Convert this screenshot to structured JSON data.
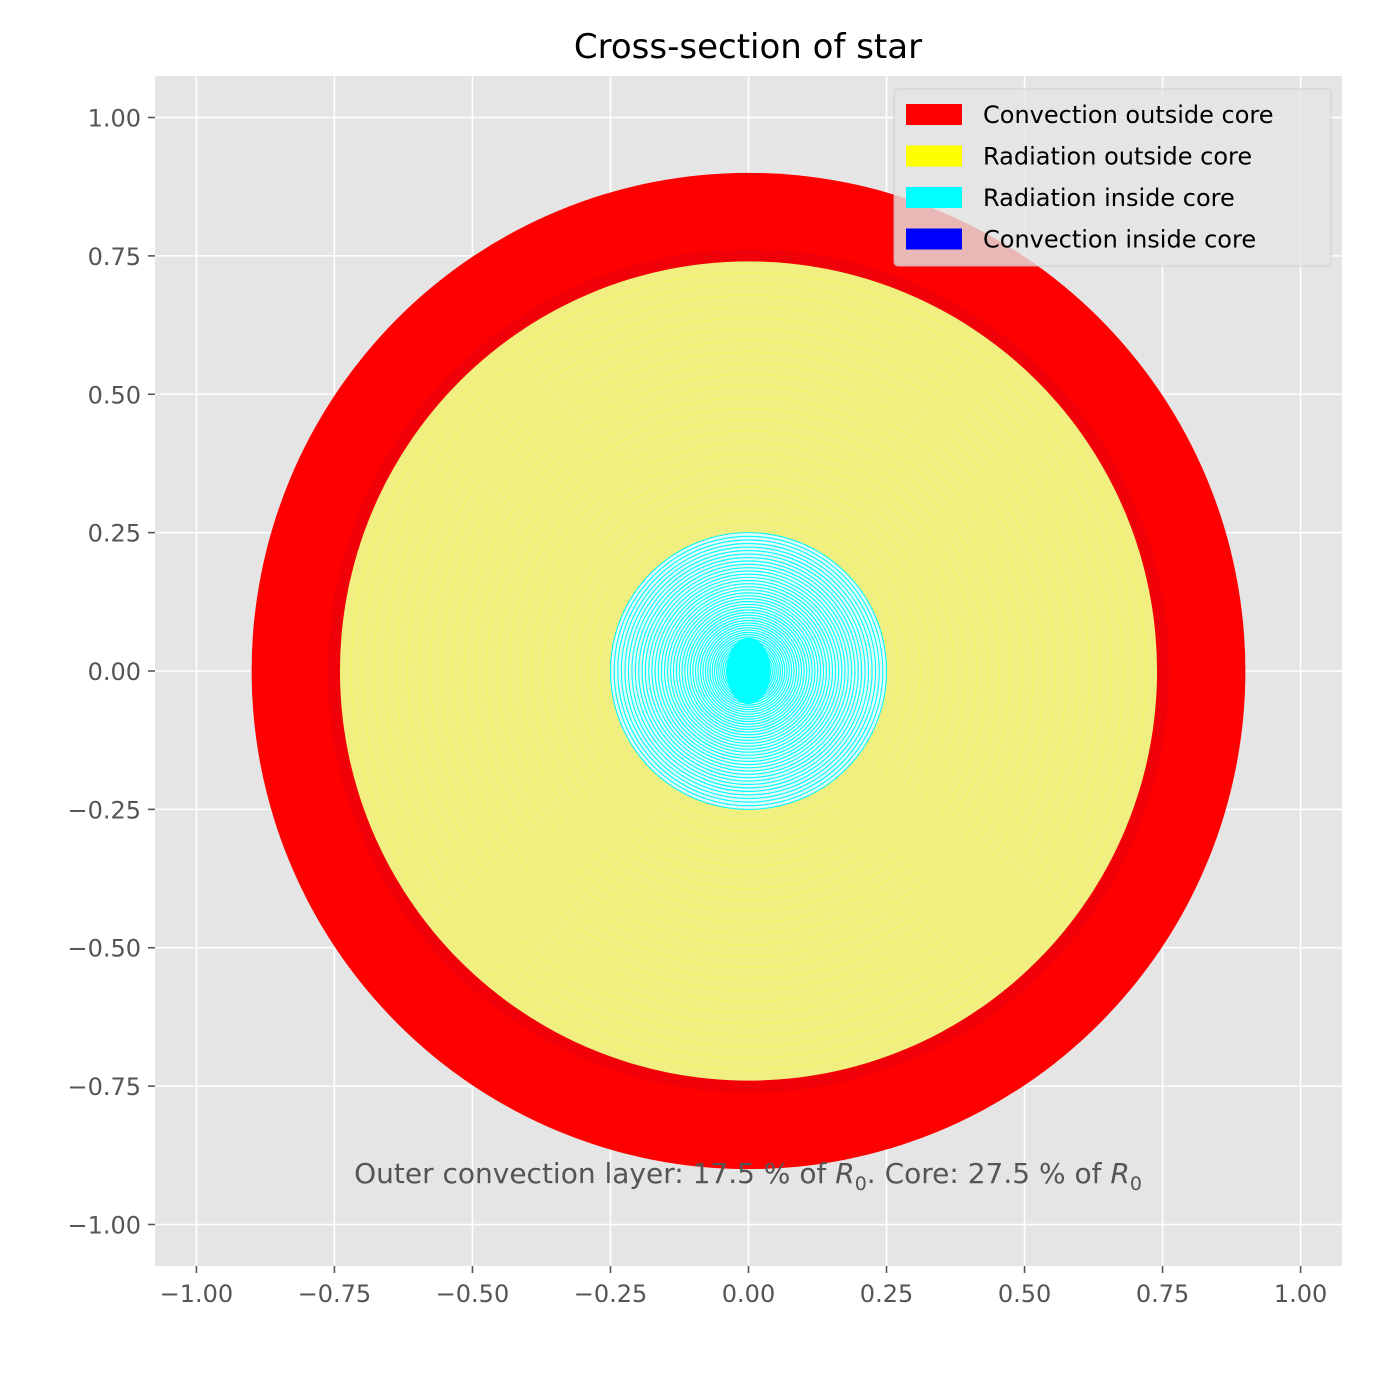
{
  "chart_data": {
    "type": "other",
    "title": "Cross-section of star",
    "xlabel": {
      "prefix": "Outer convection layer: 17.5 % of ",
      "var1": "R",
      "sub1": "0",
      "middle": ". Core: 27.5 % of ",
      "var2": "R",
      "sub2": "0"
    },
    "ylabel": "",
    "xlim": [
      -1.075,
      1.075
    ],
    "ylim": [
      -1.075,
      1.075
    ],
    "x_ticks": [
      -1.0,
      -0.75,
      -0.5,
      -0.25,
      0.0,
      0.25,
      0.5,
      0.75,
      1.0
    ],
    "x_tick_labels": [
      "−1.00",
      "−0.75",
      "−0.50",
      "−0.25",
      "0.00",
      "0.25",
      "0.50",
      "0.75",
      "1.00"
    ],
    "y_ticks": [
      1.0,
      0.75,
      0.5,
      0.25,
      0.0,
      -0.25,
      -0.5,
      -0.75,
      -1.0
    ],
    "y_tick_labels": [
      "1.00",
      "0.75",
      "0.50",
      "0.25",
      "0.00",
      "−0.25",
      "−0.50",
      "−0.75",
      "−1.00"
    ],
    "grid": true,
    "legend_position": "top-right",
    "regions": [
      {
        "name": "Convection outside core",
        "color": "#ff0000",
        "r_outer": 0.9,
        "r_inner": 0.74
      },
      {
        "name": "Radiation outside core",
        "color": "#ffff00",
        "fill": "#f0ef80",
        "r_outer": 0.74,
        "r_inner": 0.25
      },
      {
        "name": "Radiation inside core",
        "color": "#00ffff",
        "r_outer": 0.25,
        "r_inner": 0.0
      },
      {
        "name": "Convection inside core",
        "color": "#0000ff",
        "r_outer": 0.0,
        "r_inner": 0.0
      }
    ]
  }
}
